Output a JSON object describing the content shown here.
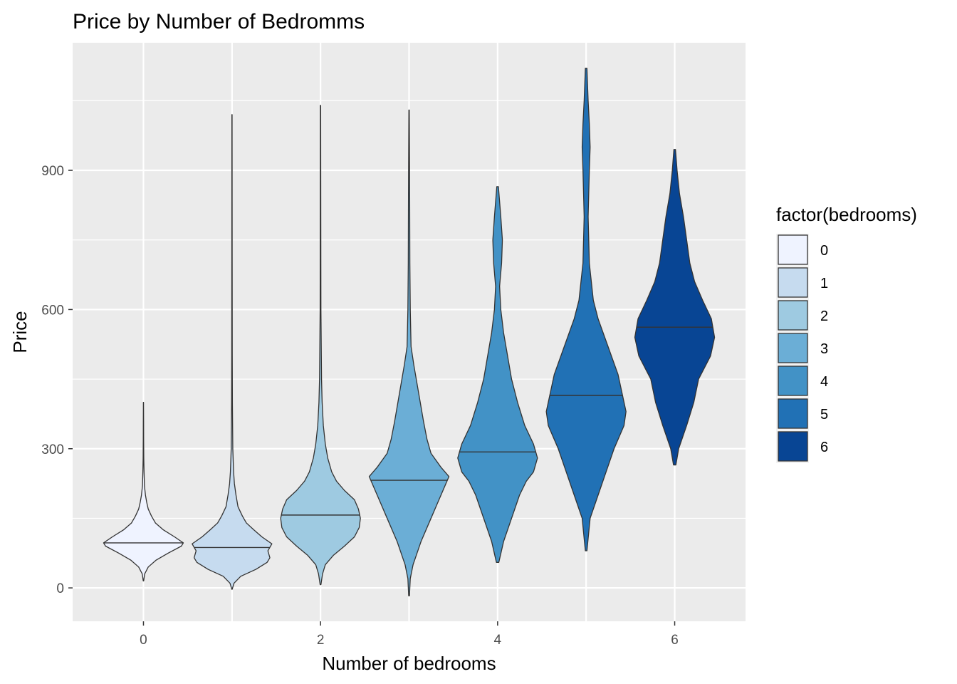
{
  "chart_data": {
    "type": "violin",
    "title": "Price by Number of Bedromms",
    "xlabel": "Number of bedrooms",
    "ylabel": "Price",
    "x_ticks": [
      0,
      2,
      4,
      6
    ],
    "y_ticks": [
      0,
      300,
      600,
      900
    ],
    "xlim": [
      -0.8,
      6.8
    ],
    "ylim": [
      -72,
      1175
    ],
    "grid": true,
    "legend": {
      "title": "factor(bedrooms)",
      "position": "right",
      "entries": [
        "0",
        "1",
        "2",
        "3",
        "4",
        "5",
        "6"
      ]
    },
    "colors": [
      "#eff3ff",
      "#c6dbef",
      "#9ecae1",
      "#6baed6",
      "#4292c6",
      "#2171b5",
      "#084594"
    ],
    "series": [
      {
        "bedrooms": 0,
        "min": 15,
        "max": 400,
        "median": 97,
        "density": [
          [
            15,
            0.005
          ],
          [
            30,
            0.03
          ],
          [
            45,
            0.12
          ],
          [
            60,
            0.32
          ],
          [
            75,
            0.62
          ],
          [
            90,
            0.95
          ],
          [
            97,
            1.0
          ],
          [
            110,
            0.78
          ],
          [
            125,
            0.5
          ],
          [
            140,
            0.3
          ],
          [
            155,
            0.2
          ],
          [
            170,
            0.12
          ],
          [
            185,
            0.08
          ],
          [
            200,
            0.05
          ],
          [
            220,
            0.025
          ],
          [
            250,
            0.015
          ],
          [
            280,
            0.008
          ],
          [
            320,
            0.005
          ],
          [
            360,
            0.004
          ],
          [
            400,
            0.002
          ]
        ]
      },
      {
        "bedrooms": 1,
        "min": -3,
        "max": 1020,
        "median": 87,
        "density": [
          [
            -3,
            0.005
          ],
          [
            10,
            0.05
          ],
          [
            25,
            0.22
          ],
          [
            40,
            0.6
          ],
          [
            55,
            0.88
          ],
          [
            65,
            0.95
          ],
          [
            80,
            0.9
          ],
          [
            95,
            1.0
          ],
          [
            110,
            0.75
          ],
          [
            125,
            0.55
          ],
          [
            140,
            0.36
          ],
          [
            155,
            0.26
          ],
          [
            175,
            0.15
          ],
          [
            200,
            0.1
          ],
          [
            225,
            0.06
          ],
          [
            250,
            0.04
          ],
          [
            300,
            0.02
          ],
          [
            400,
            0.01
          ],
          [
            500,
            0.007
          ],
          [
            700,
            0.005
          ],
          [
            1020,
            0.003
          ]
        ]
      },
      {
        "bedrooms": 2,
        "min": 7,
        "max": 1040,
        "median": 157,
        "density": [
          [
            7,
            0.01
          ],
          [
            30,
            0.05
          ],
          [
            50,
            0.12
          ],
          [
            70,
            0.32
          ],
          [
            90,
            0.6
          ],
          [
            110,
            0.85
          ],
          [
            130,
            0.97
          ],
          [
            150,
            1.0
          ],
          [
            170,
            0.95
          ],
          [
            190,
            0.85
          ],
          [
            210,
            0.6
          ],
          [
            230,
            0.4
          ],
          [
            250,
            0.28
          ],
          [
            280,
            0.18
          ],
          [
            310,
            0.12
          ],
          [
            350,
            0.07
          ],
          [
            400,
            0.04
          ],
          [
            450,
            0.025
          ],
          [
            500,
            0.02
          ],
          [
            600,
            0.01
          ],
          [
            800,
            0.007
          ],
          [
            1040,
            0.004
          ]
        ]
      },
      {
        "bedrooms": 3,
        "min": -17,
        "max": 1030,
        "median": 232,
        "density": [
          [
            -17,
            0.01
          ],
          [
            20,
            0.03
          ],
          [
            50,
            0.1
          ],
          [
            100,
            0.3
          ],
          [
            150,
            0.55
          ],
          [
            180,
            0.7
          ],
          [
            210,
            0.85
          ],
          [
            240,
            1.0
          ],
          [
            260,
            0.8
          ],
          [
            290,
            0.55
          ],
          [
            320,
            0.45
          ],
          [
            360,
            0.36
          ],
          [
            400,
            0.28
          ],
          [
            440,
            0.2
          ],
          [
            480,
            0.12
          ],
          [
            520,
            0.05
          ],
          [
            600,
            0.03
          ],
          [
            700,
            0.02
          ],
          [
            850,
            0.015
          ],
          [
            1030,
            0.005
          ]
        ]
      },
      {
        "bedrooms": 4,
        "min": 55,
        "max": 865,
        "median": 293,
        "density": [
          [
            55,
            0.03
          ],
          [
            100,
            0.15
          ],
          [
            150,
            0.35
          ],
          [
            200,
            0.55
          ],
          [
            230,
            0.72
          ],
          [
            250,
            0.9
          ],
          [
            280,
            1.0
          ],
          [
            310,
            0.9
          ],
          [
            350,
            0.68
          ],
          [
            400,
            0.5
          ],
          [
            450,
            0.35
          ],
          [
            500,
            0.25
          ],
          [
            550,
            0.15
          ],
          [
            600,
            0.08
          ],
          [
            650,
            0.05
          ],
          [
            700,
            0.1
          ],
          [
            750,
            0.12
          ],
          [
            800,
            0.08
          ],
          [
            865,
            0.02
          ]
        ]
      },
      {
        "bedrooms": 5,
        "min": 80,
        "max": 1120,
        "median": 415,
        "density": [
          [
            80,
            0.02
          ],
          [
            150,
            0.1
          ],
          [
            200,
            0.3
          ],
          [
            250,
            0.5
          ],
          [
            300,
            0.7
          ],
          [
            350,
            0.95
          ],
          [
            380,
            1.0
          ],
          [
            420,
            0.9
          ],
          [
            460,
            0.8
          ],
          [
            520,
            0.55
          ],
          [
            580,
            0.3
          ],
          [
            620,
            0.18
          ],
          [
            700,
            0.08
          ],
          [
            800,
            0.05
          ],
          [
            900,
            0.08
          ],
          [
            950,
            0.1
          ],
          [
            1000,
            0.08
          ],
          [
            1050,
            0.05
          ],
          [
            1120,
            0.02
          ]
        ]
      },
      {
        "bedrooms": 6,
        "min": 265,
        "max": 945,
        "median": 562,
        "density": [
          [
            265,
            0.03
          ],
          [
            300,
            0.1
          ],
          [
            350,
            0.3
          ],
          [
            400,
            0.48
          ],
          [
            450,
            0.6
          ],
          [
            500,
            0.9
          ],
          [
            540,
            1.0
          ],
          [
            580,
            0.92
          ],
          [
            620,
            0.7
          ],
          [
            660,
            0.5
          ],
          [
            700,
            0.38
          ],
          [
            750,
            0.3
          ],
          [
            800,
            0.22
          ],
          [
            850,
            0.12
          ],
          [
            900,
            0.06
          ],
          [
            945,
            0.02
          ]
        ]
      }
    ]
  }
}
